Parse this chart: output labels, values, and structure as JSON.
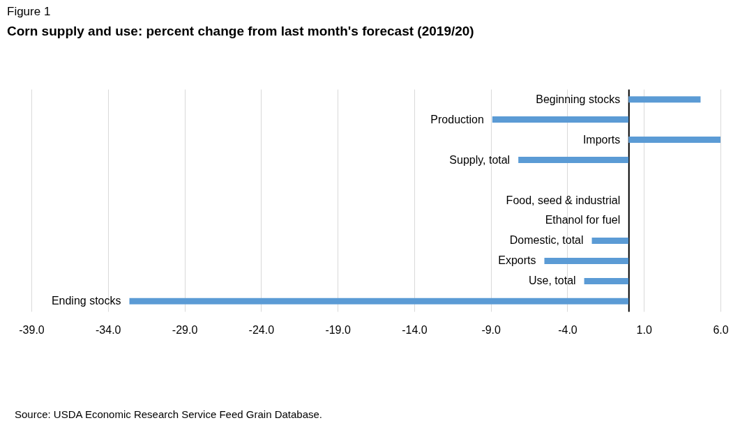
{
  "chart_data": {
    "type": "bar",
    "orientation": "horizontal",
    "subtitle": "Figure 1",
    "title": "Corn supply and use: percent change from last month's forecast (2019/20)",
    "categories": [
      "Beginning stocks",
      "Production",
      "Imports",
      "Supply, total",
      null,
      "Food, seed & industrial",
      "Ethanol for fuel",
      "Domestic, total",
      "Exports",
      "Use, total",
      "Ending stocks"
    ],
    "values": [
      4.7,
      -8.9,
      6.0,
      -7.2,
      null,
      0,
      0,
      -2.4,
      -5.5,
      -2.9,
      -32.6
    ],
    "color": "#5b9bd5",
    "xlim": [
      -39,
      6
    ],
    "xticks": [
      {
        "value": -39,
        "label": "-39.0"
      },
      {
        "value": -34,
        "label": "-34.0"
      },
      {
        "value": -29,
        "label": "-29.0"
      },
      {
        "value": -24,
        "label": "-24.0"
      },
      {
        "value": -19,
        "label": "-19.0"
      },
      {
        "value": -14,
        "label": "-14.0"
      },
      {
        "value": -9,
        "label": "-9.0"
      },
      {
        "value": -4,
        "label": "-4.0"
      },
      {
        "value": 1,
        "label": "1.0"
      },
      {
        "value": 6,
        "label": "6.0"
      }
    ],
    "grid": "x",
    "annotations": [
      "Source: USDA Economic Research Service Feed Grain Database."
    ]
  }
}
